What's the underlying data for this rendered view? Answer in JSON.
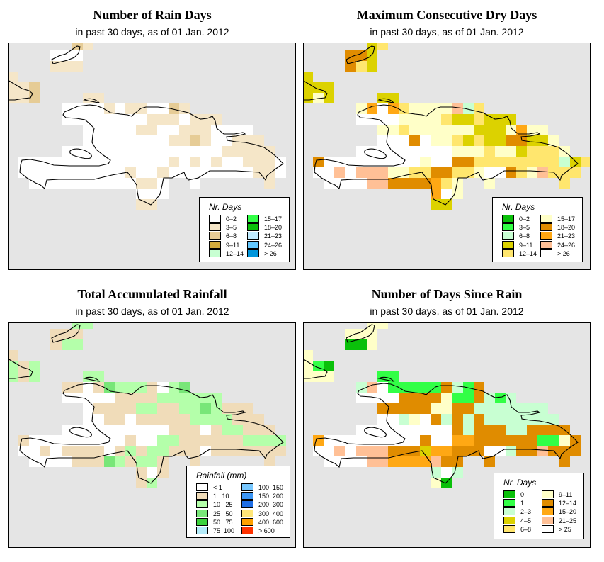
{
  "panels": [
    {
      "title": "Number of Rain Days",
      "subtitle": "in past 30 days, as of  01 Jan. 2012",
      "legend_title": "Nr. Days",
      "legend": [
        {
          "label": "0–2",
          "color": "#ffffff"
        },
        {
          "label": "3–5",
          "color": "#f5e6c8"
        },
        {
          "label": "6–8",
          "color": "#e6cc96"
        },
        {
          "label": "9–11",
          "color": "#d2aa3c"
        },
        {
          "label": "12–14",
          "color": "#c8ffd2"
        },
        {
          "label": "15–17",
          "color": "#32ff46"
        },
        {
          "label": "18–20",
          "color": "#0ac00a"
        },
        {
          "label": "21–23",
          "color": "#c0ebff"
        },
        {
          "label": "24–26",
          "color": "#64c8ff"
        },
        {
          "label": "> 26",
          "color": "#0096dc"
        }
      ],
      "grid": [
        "......21...................",
        "....000....................",
        "....111....................",
        "1..........................",
        "112........................",
        "112....11..................",
        ".....000010110021..........",
        ".....000000001110111.......",
        ".......0000011001110000....",
        ".......00000000112100111...",
        ".....00000000000000011111..",
        ".0000000000000010101001110.",
        ".0000000000100100000000110.",
        "..0000000000110..0......1..",
        "............000............",
        "............11............."
      ]
    },
    {
      "title": "Maximum Consecutive Dry Days",
      "subtitle": "in past 30 days, as of  01 Jan. 2012",
      "legend_title": "Nr. Days",
      "legend": [
        {
          "label": "0–2",
          "color": "#0ac00a"
        },
        {
          "label": "3–5",
          "color": "#32ff46"
        },
        {
          "label": "6–8",
          "color": "#c8ffd2"
        },
        {
          "label": "9–11",
          "color": "#dcd200"
        },
        {
          "label": "12–14",
          "color": "#ffe66e"
        },
        {
          "label": "15–17",
          "color": "#ffffc8"
        },
        {
          "label": "18–20",
          "color": "#e08c00"
        },
        {
          "label": "21–23",
          "color": "#ffa814"
        },
        {
          "label": "24–26",
          "color": "#ffc096"
        },
        {
          "label": "> 26",
          "color": "#ffffff"
        }
      ],
      "grid": [
        "......34...................",
        "....663....................",
        "....643....................",
        "3..........................",
        "333........................",
        "353....33..................",
        ".....579745555824..........",
        ".....999955554334333.......",
        ".......5545555553335755....",
        ".......99969554343366335...",
        ".....99999999955545534445..",
        ".69999999995996644444444234",
        ".9989888554466445996458444.",
        "..9999886666745..5......4..",
        "............795............",
        "............33............."
      ]
    },
    {
      "title": "Total Accumulated Rainfall",
      "subtitle": "in past 30 days, as of  01 Jan. 2012",
      "legend_title": "Rainfall (mm)",
      "legend": [
        {
          "label": "< 1",
          "color": "#ffffff"
        },
        {
          "label": "1   10",
          "color": "#f0dcb9"
        },
        {
          "label": "10   25",
          "color": "#b4ffaa"
        },
        {
          "label": "25   50",
          "color": "#78e678"
        },
        {
          "label": "50   75",
          "color": "#3cd23c"
        },
        {
          "label": "75  100",
          "color": "#b4ebfa"
        },
        {
          "label": "100  150",
          "color": "#78c8ff"
        },
        {
          "label": "150  200",
          "color": "#3c96f5"
        },
        {
          "label": "200  300",
          "color": "#1e6ee6"
        },
        {
          "label": "300  400",
          "color": "#ffe678"
        },
        {
          "label": "400  600",
          "color": "#ffa000"
        },
        {
          "label": "> 600",
          "color": "#ff3200"
        }
      ],
      "grid": [
        "......22...................",
        "....111....................",
        "....122....................",
        "1..........................",
        "212........................",
        "212....22..................",
        ".....110132221023..........",
        ".....000001111222222.......",
        ".......0111122112232111....",
        ".......00110111112222111...",
        ".....00000000001110122111..",
        ".1000000000100221111112222.",
        ".0010111101212211101111111.",
        "..0000111321221..1......1..",
        "............101............",
        "............12............."
      ]
    },
    {
      "title": "Number of Days Since Rain",
      "subtitle": "in past 30 days, as of  01 Jan. 2012",
      "legend_title": "Nr. Days",
      "legend": [
        {
          "label": "0",
          "color": "#0ac00a"
        },
        {
          "label": "1",
          "color": "#32ff46"
        },
        {
          "label": "2–3",
          "color": "#c8ffd2"
        },
        {
          "label": "4–5",
          "color": "#dcd200"
        },
        {
          "label": "6–8",
          "color": "#ffe66e"
        },
        {
          "label": "9–11",
          "color": "#ffffc8"
        },
        {
          "label": "12–14",
          "color": "#e08c00"
        },
        {
          "label": "15–20",
          "color": "#ffa814"
        },
        {
          "label": "21–25",
          "color": "#ffc096"
        },
        {
          "label": "> 25",
          "color": "#ffffff"
        }
      ],
      "grid": [
        "......55...................",
        "....555....................",
        "....005....................",
        "5..........................",
        "510........................",
        "555....11..................",
        ".....289111116216..........",
        ".....999966665116212.......",
        ".......6666655662222222....",
        ".......99259626262222222...",
        ".....99999999962666226666..",
        ".7999999999699776666661156.",
        ".9989888666377666992668666.",
        "..9999887777866..6......6..",
        "............292............",
        "............50............."
      ]
    }
  ]
}
